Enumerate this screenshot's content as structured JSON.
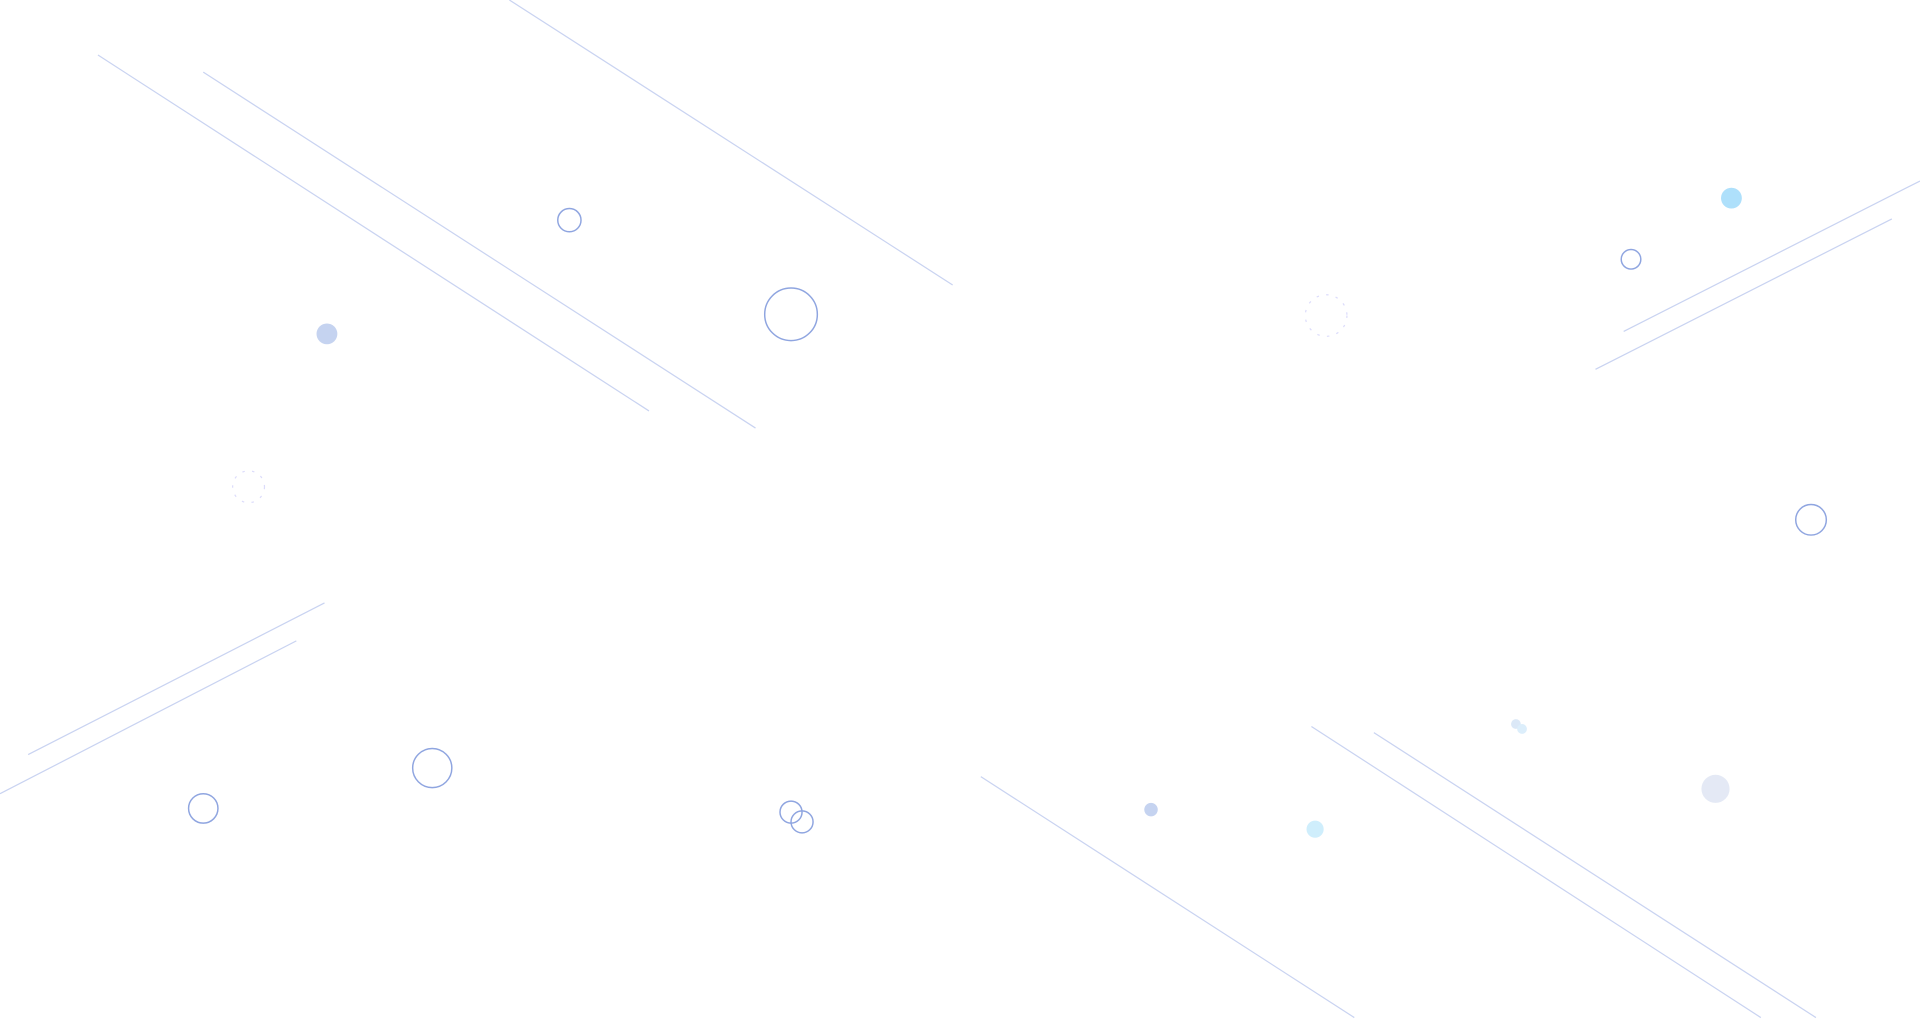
{
  "background": {
    "color": "#ffffff",
    "line_color": "#c9d3f1",
    "ring_color": "#8fa5e0",
    "dot_colors": [
      "#c5d3f0",
      "#aee0fb",
      "#cfeefc",
      "#e4e9f5"
    ]
  }
}
